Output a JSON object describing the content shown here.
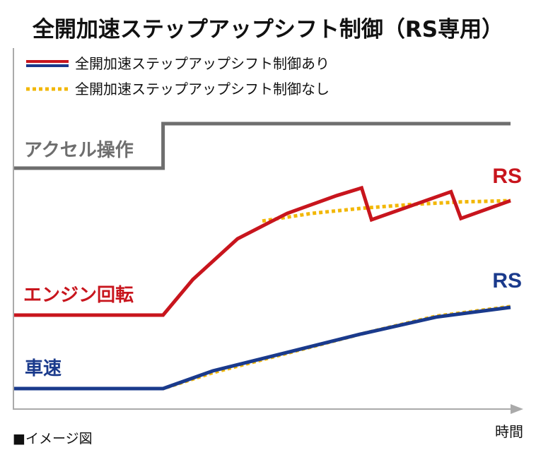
{
  "chart_data": {
    "type": "line",
    "title": "全開加速ステップアップシフト制御（RS専用）",
    "xlabel": "時間",
    "note": "■イメージ図",
    "legend": [
      {
        "label": "全開加速ステップアップシフト制御あり",
        "style": "solid",
        "colors": [
          "#c8151d",
          "#ffffff",
          "#1a3a8c"
        ]
      },
      {
        "label": "全開加速ステップアップシフト制御なし",
        "style": "dotted",
        "colors": [
          "#f2b705"
        ]
      }
    ],
    "tracks": [
      {
        "label": "アクセル操作",
        "color": "#6e6e6e",
        "line_color": "#6e6e6e",
        "series": [
          {
            "style": "solid",
            "points": [
              [
                0,
                0
              ],
              [
                0.3,
                0
              ],
              [
                0.3,
                1
              ],
              [
                1,
                1
              ]
            ]
          }
        ]
      },
      {
        "label": "エンジン回転",
        "color": "#c8151d",
        "end_label": "RS",
        "end_label_color": "#c8151d",
        "series": [
          {
            "name": "制御あり",
            "style": "solid",
            "color": "#c8151d",
            "points": [
              [
                0,
                0
              ],
              [
                0.3,
                0
              ],
              [
                0.36,
                0.28
              ],
              [
                0.45,
                0.6
              ],
              [
                0.55,
                0.8
              ],
              [
                0.65,
                0.94
              ],
              [
                0.7,
                1.0
              ],
              [
                0.72,
                0.75
              ],
              [
                0.88,
                0.97
              ],
              [
                0.9,
                0.76
              ],
              [
                1.0,
                0.9
              ]
            ]
          },
          {
            "name": "制御なし",
            "style": "dotted",
            "color": "#f2b705",
            "points": [
              [
                0.5,
                0.74
              ],
              [
                0.6,
                0.8
              ],
              [
                0.7,
                0.84
              ],
              [
                0.8,
                0.87
              ],
              [
                0.9,
                0.89
              ],
              [
                1.0,
                0.9
              ]
            ]
          }
        ]
      },
      {
        "label": "車速",
        "color": "#1a3a8c",
        "end_label": "RS",
        "end_label_color": "#1a3a8c",
        "series": [
          {
            "name": "制御あり",
            "style": "solid",
            "color": "#1a3a8c",
            "points": [
              [
                0,
                0
              ],
              [
                0.3,
                0
              ],
              [
                0.4,
                0.2
              ],
              [
                0.55,
                0.41
              ],
              [
                0.7,
                0.62
              ],
              [
                0.85,
                0.81
              ],
              [
                1.0,
                0.92
              ]
            ]
          },
          {
            "name": "制御なし",
            "style": "dotted",
            "color": "#f2b705",
            "points": [
              [
                0,
                0
              ],
              [
                0.3,
                0
              ],
              [
                0.4,
                0.18
              ],
              [
                0.55,
                0.4
              ],
              [
                0.7,
                0.62
              ],
              [
                0.85,
                0.82
              ],
              [
                1.0,
                0.93
              ]
            ]
          }
        ]
      }
    ]
  },
  "colors": {
    "axis": "#aaaaaa",
    "red": "#c8151d",
    "blue": "#1a3a8c",
    "yellow": "#f2b705",
    "gray": "#6e6e6e"
  }
}
